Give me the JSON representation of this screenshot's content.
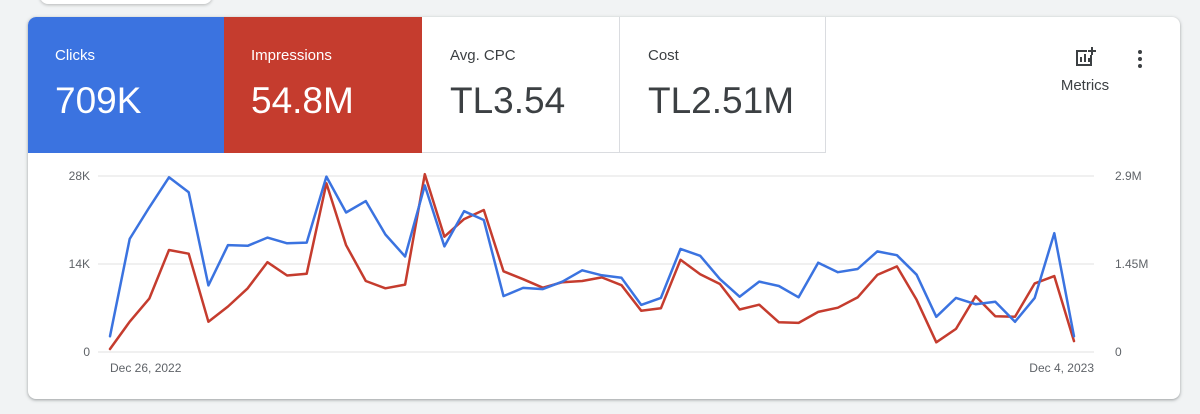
{
  "scorecards": [
    {
      "label": "Clicks",
      "value": "709K",
      "color": "#3b73e0"
    },
    {
      "label": "Impressions",
      "value": "54.8M",
      "color": "#c53c2e"
    },
    {
      "label": "Avg. CPC",
      "value": "TL3.54"
    },
    {
      "label": "Cost",
      "value": "TL2.51M"
    }
  ],
  "toolbar": {
    "metrics_label": "Metrics",
    "metrics_icon": "add-chart-icon",
    "more_icon": "more-vert-icon"
  },
  "chart_data": {
    "type": "line",
    "x_start_label": "Dec 26, 2022",
    "x_end_label": "Dec 4, 2023",
    "y_left": {
      "ticks": [
        "0",
        "14K",
        "28K"
      ],
      "values": [
        0,
        14000,
        28000
      ],
      "range": [
        0,
        28000
      ]
    },
    "y_right": {
      "ticks": [
        "0",
        "1.45M",
        "2.9M"
      ],
      "values": [
        0,
        1450000,
        2900000
      ],
      "range": [
        0,
        2900000
      ]
    },
    "grid": true,
    "series": [
      {
        "name": "Clicks",
        "color": "#3b73e0",
        "axis": "left",
        "values": [
          2500,
          18000,
          23000,
          27800,
          25400,
          10600,
          17000,
          16900,
          18200,
          17300,
          17400,
          27900,
          22200,
          24000,
          18700,
          15200,
          26500,
          16800,
          22400,
          21000,
          8900,
          10200,
          10000,
          11200,
          13000,
          12200,
          11800,
          7500,
          8600,
          16400,
          15300,
          11600,
          8800,
          11200,
          10500,
          8700,
          14200,
          12700,
          13200,
          16000,
          15400,
          12300,
          5600,
          8600,
          7600,
          8000,
          4800,
          8600,
          18900,
          2500
        ]
      },
      {
        "name": "Impressions",
        "color": "#c53c2e",
        "axis": "right",
        "values": [
          50000,
          500000,
          880000,
          1680000,
          1620000,
          500000,
          750000,
          1050000,
          1480000,
          1260000,
          1290000,
          2780000,
          1760000,
          1170000,
          1050000,
          1110000,
          2930000,
          1900000,
          2190000,
          2340000,
          1330000,
          1200000,
          1060000,
          1150000,
          1170000,
          1230000,
          1100000,
          680000,
          720000,
          1520000,
          1280000,
          1120000,
          700000,
          780000,
          490000,
          480000,
          660000,
          730000,
          900000,
          1270000,
          1410000,
          860000,
          160000,
          380000,
          920000,
          590000,
          580000,
          1130000,
          1250000,
          180000
        ]
      }
    ]
  }
}
